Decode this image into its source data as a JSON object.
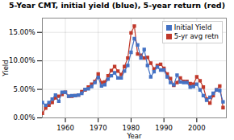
{
  "chart_data": {
    "type": "line",
    "title": "5-Year CMT, initial yield (blue), 5-year return (red)",
    "xlabel": "Year",
    "ylabel": "Yield",
    "x": [
      1953,
      1954,
      1955,
      1956,
      1957,
      1958,
      1959,
      1960,
      1961,
      1962,
      1963,
      1964,
      1965,
      1966,
      1967,
      1968,
      1969,
      1970,
      1971,
      1972,
      1973,
      1974,
      1975,
      1976,
      1977,
      1978,
      1979,
      1980,
      1981,
      1982,
      1983,
      1984,
      1985,
      1986,
      1987,
      1988,
      1989,
      1990,
      1991,
      1992,
      1993,
      1994,
      1995,
      1996,
      1997,
      1998,
      1999,
      2000,
      2001,
      2002,
      2003,
      2004,
      2005,
      2006,
      2007,
      2008
    ],
    "series": [
      {
        "name": "Initial Yield",
        "color": "#4472c4",
        "values": [
          0.027,
          0.022,
          0.027,
          0.033,
          0.04,
          0.029,
          0.045,
          0.045,
          0.038,
          0.039,
          0.039,
          0.04,
          0.043,
          0.05,
          0.051,
          0.055,
          0.062,
          0.071,
          0.056,
          0.058,
          0.068,
          0.074,
          0.079,
          0.07,
          0.07,
          0.082,
          0.092,
          0.115,
          0.139,
          0.128,
          0.105,
          0.12,
          0.092,
          0.072,
          0.081,
          0.089,
          0.084,
          0.084,
          0.072,
          0.062,
          0.058,
          0.075,
          0.063,
          0.062,
          0.062,
          0.054,
          0.055,
          0.059,
          0.049,
          0.039,
          0.031,
          0.036,
          0.043,
          0.049,
          0.048,
          0.028
        ]
      },
      {
        "name": "5-yr avg retn",
        "color": "#c0392b",
        "values": [
          0.008,
          0.017,
          0.022,
          0.027,
          0.035,
          0.038,
          0.041,
          0.045,
          0.038,
          0.038,
          0.039,
          0.04,
          0.046,
          0.049,
          0.054,
          0.059,
          0.064,
          0.077,
          0.062,
          0.063,
          0.074,
          0.083,
          0.09,
          0.082,
          0.076,
          0.09,
          0.105,
          0.149,
          0.161,
          0.112,
          0.11,
          0.105,
          0.106,
          0.096,
          0.086,
          0.092,
          0.094,
          0.087,
          0.077,
          0.069,
          0.057,
          0.062,
          0.07,
          0.064,
          0.064,
          0.06,
          0.059,
          0.072,
          0.065,
          0.054,
          0.033,
          0.026,
          0.039,
          0.049,
          0.056,
          0.018
        ]
      }
    ],
    "xlim": [
      1953,
      2009
    ],
    "xticks": [
      1960,
      1970,
      1980,
      1990,
      2000
    ],
    "ylim": [
      0.0,
      0.175
    ],
    "yticks": [
      {
        "value": 0.0,
        "label": "0.00%"
      },
      {
        "value": 0.05,
        "label": "5.00%"
      },
      {
        "value": 0.1,
        "label": "10.00%"
      },
      {
        "value": 0.15,
        "label": "15.00%"
      }
    ],
    "grid": true,
    "legend": "upper right",
    "marker": "square"
  }
}
